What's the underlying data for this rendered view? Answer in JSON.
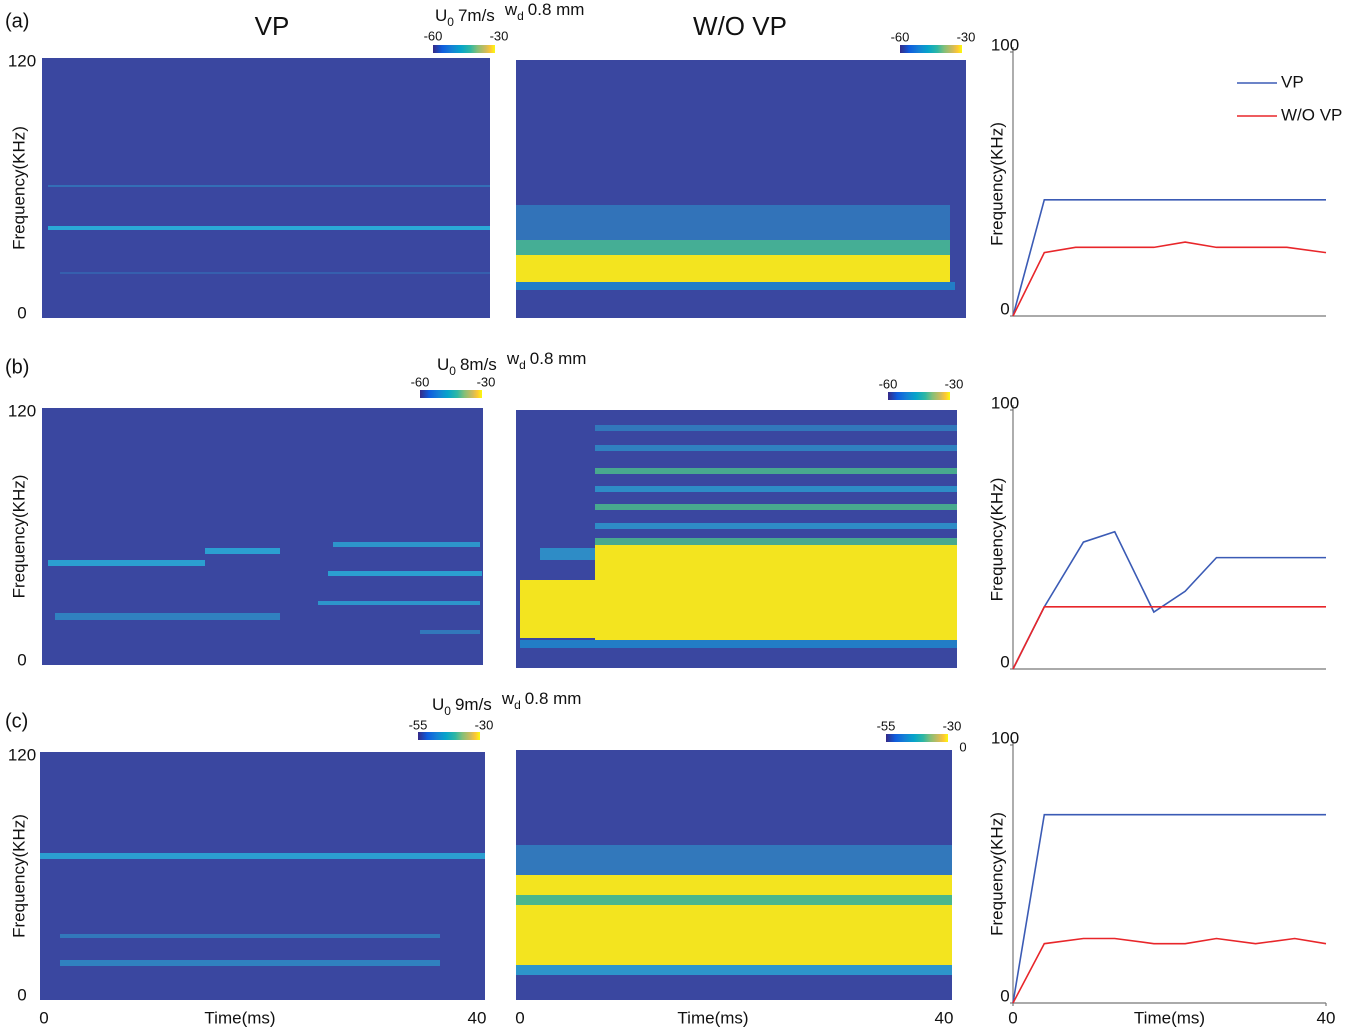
{
  "figure": {
    "columns": [
      "VP",
      "W/O VP"
    ],
    "rows": [
      {
        "label": "(a)",
        "condition": {
          "u": "U",
          "u_sub": "0",
          "speed": "7m/s",
          "w": "w",
          "w_sub": "d",
          "width": "0.8 mm"
        },
        "panels": [
          {
            "colorbar": [
              -60,
              -30
            ],
            "yticks": [
              0,
              120
            ],
            "ylabel": "Frequency(KHz)"
          },
          {
            "colorbar": [
              -60,
              -30
            ]
          }
        ]
      },
      {
        "label": "(b)",
        "condition": {
          "u": "U",
          "u_sub": "0",
          "speed": "8m/s",
          "w": "w",
          "w_sub": "d",
          "width": "0.8 mm"
        },
        "panels": [
          {
            "colorbar": [
              -60,
              -30
            ],
            "yticks": [
              0,
              120
            ],
            "ylabel": "Frequency(KHz)"
          },
          {
            "colorbar": [
              -60,
              -30
            ]
          }
        ]
      },
      {
        "label": "(c)",
        "condition": {
          "u": "U",
          "u_sub": "0",
          "speed": "9m/s",
          "w": "w",
          "w_sub": "d",
          "width": "0.8 mm"
        },
        "panels": [
          {
            "colorbar": [
              -55,
              -30
            ],
            "yticks": [
              0,
              120
            ],
            "ylabel": "Frequency(KHz)",
            "xticks": [
              0,
              40
            ],
            "xlabel": "Time(ms)"
          },
          {
            "colorbar": [
              -55,
              -30
            ],
            "xticks": [
              0,
              40
            ],
            "xlabel": "Time(ms)",
            "stray_tick": 0
          }
        ]
      }
    ]
  },
  "chart_data": [
    {
      "type": "line",
      "ylabel": "Frequency(KHz)",
      "xlim": [
        0,
        40
      ],
      "ylim": [
        0,
        100
      ],
      "yticks": [
        0,
        100
      ],
      "legend": "upper right",
      "x": [
        0,
        4,
        8,
        18,
        22,
        26,
        35,
        40
      ],
      "series": [
        {
          "name": "VP",
          "color": "#3b5bb5",
          "values": [
            0,
            44,
            44,
            44,
            44,
            44,
            44,
            44
          ]
        },
        {
          "name": "W/O VP",
          "color": "#e8262a",
          "values": [
            0,
            24,
            26,
            26,
            28,
            26,
            26,
            24
          ]
        }
      ]
    },
    {
      "type": "line",
      "ylabel": "Frequency(KHz)",
      "xlim": [
        0,
        40
      ],
      "ylim": [
        0,
        100
      ],
      "yticks": [
        0,
        100
      ],
      "x": [
        0,
        4,
        9,
        13,
        18,
        22,
        26,
        40
      ],
      "series": [
        {
          "color": "#3b5bb5",
          "values": [
            0,
            24,
            49,
            53,
            22,
            30,
            43,
            43
          ]
        },
        {
          "color": "#e8262a",
          "values": [
            0,
            24,
            24,
            24,
            24,
            24,
            24,
            24
          ]
        }
      ]
    },
    {
      "type": "line",
      "ylabel": "Frequency(KHz)",
      "xlabel": "Time(ms)",
      "xlim": [
        0,
        40
      ],
      "ylim": [
        0,
        100
      ],
      "yticks": [
        0,
        100
      ],
      "xticks": [
        0,
        40
      ],
      "x": [
        0,
        4,
        9,
        13,
        18,
        22,
        26,
        31,
        36,
        40
      ],
      "series": [
        {
          "color": "#3b5bb5",
          "values": [
            0,
            73,
            73,
            73,
            73,
            73,
            73,
            73,
            73,
            73
          ]
        },
        {
          "color": "#e8262a",
          "values": [
            0,
            23,
            25,
            25,
            23,
            23,
            25,
            23,
            25,
            23
          ]
        }
      ]
    }
  ]
}
